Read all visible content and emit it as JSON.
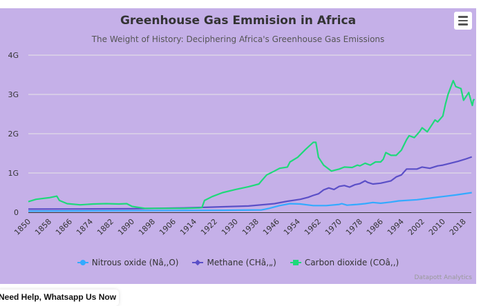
{
  "chart_data": {
    "type": "line",
    "title": "Greenhouse Gas Emmision in Africa",
    "subtitle": "The Weight of History: Deciphering Africa's Greenhouse Gas Emissions",
    "xlabel": "",
    "ylabel": "",
    "xlim": [
      1850,
      2022
    ],
    "ylim": [
      0,
      4000000000
    ],
    "y_ticks": [
      0,
      1000000000,
      2000000000,
      3000000000,
      4000000000
    ],
    "y_tick_labels": [
      "0",
      "1G",
      "2G",
      "3G",
      "4G"
    ],
    "x_tick_labels": [
      "1850",
      "1858",
      "1866",
      "1874",
      "1882",
      "1890",
      "1898",
      "1906",
      "1914",
      "1922",
      "1930",
      "1938",
      "1946",
      "1954",
      "1962",
      "1970",
      "1978",
      "1986",
      "1994",
      "2002",
      "2010",
      "2018"
    ],
    "grid": true,
    "legend": "bottom",
    "series": [
      {
        "name": "Nitrous oxide (Nâ‚‚O)",
        "label": "Nitrous oxide (Nâ,,O)",
        "color": "#33aaff",
        "marker": "circle",
        "points": [
          [
            1850,
            0.03
          ],
          [
            1870,
            0.035
          ],
          [
            1890,
            0.04
          ],
          [
            1910,
            0.045
          ],
          [
            1925,
            0.05
          ],
          [
            1940,
            0.06
          ],
          [
            1943,
            0.1
          ],
          [
            1947,
            0.17
          ],
          [
            1951,
            0.22
          ],
          [
            1955,
            0.21
          ],
          [
            1960,
            0.17
          ],
          [
            1965,
            0.17
          ],
          [
            1970,
            0.2
          ],
          [
            1971,
            0.22
          ],
          [
            1973,
            0.18
          ],
          [
            1977,
            0.2
          ],
          [
            1980,
            0.22
          ],
          [
            1983,
            0.25
          ],
          [
            1986,
            0.23
          ],
          [
            1990,
            0.26
          ],
          [
            1993,
            0.29
          ],
          [
            2000,
            0.32
          ],
          [
            2005,
            0.36
          ],
          [
            2010,
            0.4
          ],
          [
            2015,
            0.44
          ],
          [
            2022,
            0.5
          ]
        ]
      },
      {
        "name": "Methane (CHâ‚„)",
        "label": "Methane (CHâ,„)",
        "color": "#5b4fc7",
        "marker": "diamond",
        "points": [
          [
            1850,
            0.08
          ],
          [
            1870,
            0.085
          ],
          [
            1890,
            0.09
          ],
          [
            1910,
            0.11
          ],
          [
            1920,
            0.13
          ],
          [
            1935,
            0.16
          ],
          [
            1945,
            0.22
          ],
          [
            1950,
            0.28
          ],
          [
            1955,
            0.33
          ],
          [
            1958,
            0.38
          ],
          [
            1960,
            0.43
          ],
          [
            1962,
            0.47
          ],
          [
            1964,
            0.57
          ],
          [
            1966,
            0.62
          ],
          [
            1968,
            0.58
          ],
          [
            1970,
            0.66
          ],
          [
            1972,
            0.68
          ],
          [
            1974,
            0.64
          ],
          [
            1976,
            0.7
          ],
          [
            1978,
            0.73
          ],
          [
            1980,
            0.8
          ],
          [
            1981,
            0.76
          ],
          [
            1983,
            0.72
          ],
          [
            1986,
            0.74
          ],
          [
            1990,
            0.8
          ],
          [
            1992,
            0.9
          ],
          [
            1994,
            0.95
          ],
          [
            1996,
            1.1
          ],
          [
            2000,
            1.1
          ],
          [
            2002,
            1.15
          ],
          [
            2005,
            1.12
          ],
          [
            2008,
            1.18
          ],
          [
            2010,
            1.2
          ],
          [
            2013,
            1.25
          ],
          [
            2016,
            1.3
          ],
          [
            2019,
            1.36
          ],
          [
            2022,
            1.41
          ]
        ]
      },
      {
        "name": "Carbon dioxide (COâ‚‚)",
        "label": "Carbon dioxide (COâ,,)",
        "color": "#1ed97a",
        "marker": "square",
        "points": [
          [
            1850,
            0.27
          ],
          [
            1853,
            0.33
          ],
          [
            1858,
            0.37
          ],
          [
            1861,
            0.41
          ],
          [
            1862,
            0.3
          ],
          [
            1865,
            0.22
          ],
          [
            1870,
            0.19
          ],
          [
            1875,
            0.21
          ],
          [
            1880,
            0.22
          ],
          [
            1885,
            0.21
          ],
          [
            1888,
            0.22
          ],
          [
            1890,
            0.15
          ],
          [
            1895,
            0.1
          ],
          [
            1900,
            0.1
          ],
          [
            1905,
            0.1
          ],
          [
            1910,
            0.1
          ],
          [
            1916,
            0.11
          ],
          [
            1917,
            0.12
          ],
          [
            1918,
            0.3
          ],
          [
            1921,
            0.4
          ],
          [
            1925,
            0.5
          ],
          [
            1930,
            0.58
          ],
          [
            1935,
            0.65
          ],
          [
            1939,
            0.72
          ],
          [
            1940,
            0.8
          ],
          [
            1942,
            0.95
          ],
          [
            1945,
            1.05
          ],
          [
            1947,
            1.12
          ],
          [
            1950,
            1.15
          ],
          [
            1951,
            1.28
          ],
          [
            1954,
            1.4
          ],
          [
            1957,
            1.6
          ],
          [
            1960,
            1.78
          ],
          [
            1961,
            1.78
          ],
          [
            1962,
            1.4
          ],
          [
            1964,
            1.2
          ],
          [
            1967,
            1.05
          ],
          [
            1970,
            1.1
          ],
          [
            1972,
            1.15
          ],
          [
            1975,
            1.14
          ],
          [
            1977,
            1.2
          ],
          [
            1978,
            1.18
          ],
          [
            1980,
            1.25
          ],
          [
            1982,
            1.2
          ],
          [
            1984,
            1.28
          ],
          [
            1986,
            1.28
          ],
          [
            1987,
            1.35
          ],
          [
            1988,
            1.52
          ],
          [
            1990,
            1.45
          ],
          [
            1992,
            1.45
          ],
          [
            1994,
            1.58
          ],
          [
            1996,
            1.85
          ],
          [
            1997,
            1.95
          ],
          [
            1999,
            1.9
          ],
          [
            2001,
            2.05
          ],
          [
            2002,
            2.15
          ],
          [
            2003,
            2.1
          ],
          [
            2004,
            2.05
          ],
          [
            2006,
            2.25
          ],
          [
            2007,
            2.35
          ],
          [
            2008,
            2.3
          ],
          [
            2010,
            2.45
          ],
          [
            2011,
            2.75
          ],
          [
            2012,
            3.0
          ],
          [
            2014,
            3.35
          ],
          [
            2015,
            3.2
          ],
          [
            2017,
            3.15
          ],
          [
            2018,
            2.85
          ],
          [
            2020,
            3.05
          ],
          [
            2021,
            2.8
          ],
          [
            2023,
            2.72
          ],
          [
            2025,
            2.85
          ],
          [
            2027,
            2.88
          ]
        ]
      }
    ]
  },
  "chart_meta": {
    "value_unit_multiplier": 1000000000
  },
  "toolbar": {
    "menu_icon": "hamburger-menu-icon"
  },
  "credits": "Datapott Analytics",
  "help_banner": "Need Help, Whatsapp Us Now"
}
